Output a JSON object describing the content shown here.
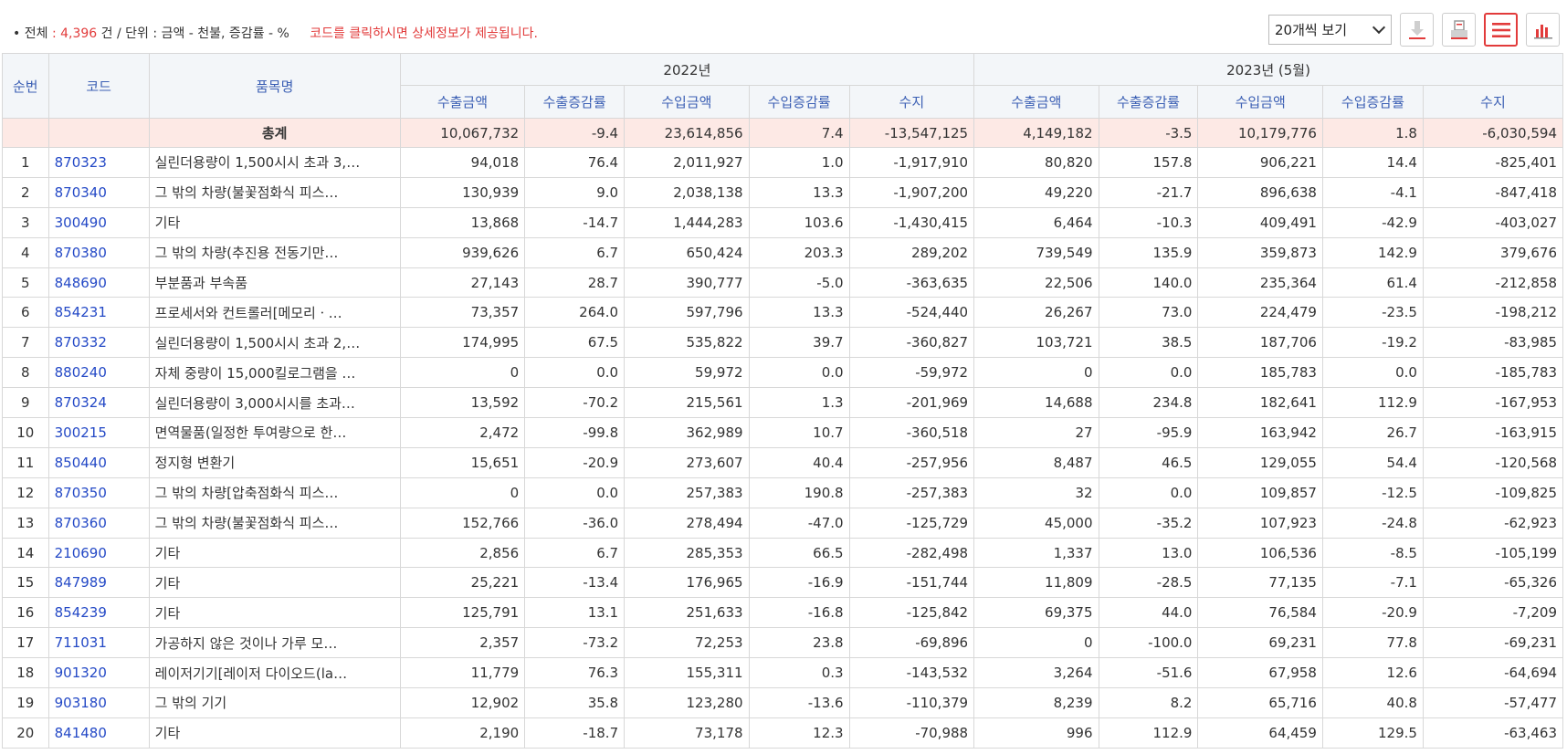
{
  "summary": {
    "bullet": "•",
    "total_label": "전체",
    "sep1": ":",
    "total_count": "4,396",
    "total_unit": "건",
    "slash": "/",
    "unit_label": "단위",
    "sep2": ":",
    "unit_text": "금액 - 천불, 증감률 - %",
    "note": "코드를 클릭하시면 상세정보가 제공됩니다."
  },
  "controls": {
    "page_size_selected": "20개씩 보기",
    "icons": [
      "download-icon",
      "print-icon",
      "list-view-icon",
      "chart-view-icon"
    ],
    "accent_color": "#e23b3b"
  },
  "table": {
    "headers": {
      "rank": "순번",
      "code": "코드",
      "name": "품목명",
      "period1": "2022년",
      "period2": "2023년 (5월)",
      "sub": [
        "수출금액",
        "수출증감률",
        "수입금액",
        "수입증감률",
        "수지"
      ]
    },
    "total": {
      "label": "총계",
      "values": [
        "10,067,732",
        "-9.4",
        "23,614,856",
        "7.4",
        "-13,547,125",
        "4,149,182",
        "-3.5",
        "10,179,776",
        "1.8",
        "-6,030,594"
      ]
    },
    "rows": [
      {
        "rank": "1",
        "code": "870323",
        "name": "실린더용량이 1,500시시 초과 3,…",
        "values": [
          "94,018",
          "76.4",
          "2,011,927",
          "1.0",
          "-1,917,910",
          "80,820",
          "157.8",
          "906,221",
          "14.4",
          "-825,401"
        ]
      },
      {
        "rank": "2",
        "code": "870340",
        "name": "그 밖의 차량(불꽃점화식 피스…",
        "values": [
          "130,939",
          "9.0",
          "2,038,138",
          "13.3",
          "-1,907,200",
          "49,220",
          "-21.7",
          "896,638",
          "-4.1",
          "-847,418"
        ]
      },
      {
        "rank": "3",
        "code": "300490",
        "name": "기타",
        "values": [
          "13,868",
          "-14.7",
          "1,444,283",
          "103.6",
          "-1,430,415",
          "6,464",
          "-10.3",
          "409,491",
          "-42.9",
          "-403,027"
        ]
      },
      {
        "rank": "4",
        "code": "870380",
        "name": "그 밖의 차량(추진용 전동기만…",
        "values": [
          "939,626",
          "6.7",
          "650,424",
          "203.3",
          "289,202",
          "739,549",
          "135.9",
          "359,873",
          "142.9",
          "379,676"
        ]
      },
      {
        "rank": "5",
        "code": "848690",
        "name": "부분품과 부속품",
        "values": [
          "27,143",
          "28.7",
          "390,777",
          "-5.0",
          "-363,635",
          "22,506",
          "140.0",
          "235,364",
          "61.4",
          "-212,858"
        ]
      },
      {
        "rank": "6",
        "code": "854231",
        "name": "프로세서와 컨트롤러[메모리ㆍ…",
        "values": [
          "73,357",
          "264.0",
          "597,796",
          "13.3",
          "-524,440",
          "26,267",
          "73.0",
          "224,479",
          "-23.5",
          "-198,212"
        ]
      },
      {
        "rank": "7",
        "code": "870332",
        "name": "실린더용량이 1,500시시 초과 2,…",
        "values": [
          "174,995",
          "67.5",
          "535,822",
          "39.7",
          "-360,827",
          "103,721",
          "38.5",
          "187,706",
          "-19.2",
          "-83,985"
        ]
      },
      {
        "rank": "8",
        "code": "880240",
        "name": "자체 중량이 15,000킬로그램을 …",
        "values": [
          "0",
          "0.0",
          "59,972",
          "0.0",
          "-59,972",
          "0",
          "0.0",
          "185,783",
          "0.0",
          "-185,783"
        ]
      },
      {
        "rank": "9",
        "code": "870324",
        "name": "실린더용량이 3,000시시를 초과…",
        "values": [
          "13,592",
          "-70.2",
          "215,561",
          "1.3",
          "-201,969",
          "14,688",
          "234.8",
          "182,641",
          "112.9",
          "-167,953"
        ]
      },
      {
        "rank": "10",
        "code": "300215",
        "name": "면역물품(일정한 투여량으로 한…",
        "values": [
          "2,472",
          "-99.8",
          "362,989",
          "10.7",
          "-360,518",
          "27",
          "-95.9",
          "163,942",
          "26.7",
          "-163,915"
        ]
      },
      {
        "rank": "11",
        "code": "850440",
        "name": "정지형 변환기",
        "values": [
          "15,651",
          "-20.9",
          "273,607",
          "40.4",
          "-257,956",
          "8,487",
          "46.5",
          "129,055",
          "54.4",
          "-120,568"
        ]
      },
      {
        "rank": "12",
        "code": "870350",
        "name": "그 밖의 차량[압축점화식 피스…",
        "values": [
          "0",
          "0.0",
          "257,383",
          "190.8",
          "-257,383",
          "32",
          "0.0",
          "109,857",
          "-12.5",
          "-109,825"
        ]
      },
      {
        "rank": "13",
        "code": "870360",
        "name": "그 밖의 차량(불꽃점화식 피스…",
        "values": [
          "152,766",
          "-36.0",
          "278,494",
          "-47.0",
          "-125,729",
          "45,000",
          "-35.2",
          "107,923",
          "-24.8",
          "-62,923"
        ]
      },
      {
        "rank": "14",
        "code": "210690",
        "name": "기타",
        "values": [
          "2,856",
          "6.7",
          "285,353",
          "66.5",
          "-282,498",
          "1,337",
          "13.0",
          "106,536",
          "-8.5",
          "-105,199"
        ]
      },
      {
        "rank": "15",
        "code": "847989",
        "name": "기타",
        "values": [
          "25,221",
          "-13.4",
          "176,965",
          "-16.9",
          "-151,744",
          "11,809",
          "-28.5",
          "77,135",
          "-7.1",
          "-65,326"
        ]
      },
      {
        "rank": "16",
        "code": "854239",
        "name": "기타",
        "values": [
          "125,791",
          "13.1",
          "251,633",
          "-16.8",
          "-125,842",
          "69,375",
          "44.0",
          "76,584",
          "-20.9",
          "-7,209"
        ]
      },
      {
        "rank": "17",
        "code": "711031",
        "name": "가공하지 않은 것이나 가루 모…",
        "values": [
          "2,357",
          "-73.2",
          "72,253",
          "23.8",
          "-69,896",
          "0",
          "-100.0",
          "69,231",
          "77.8",
          "-69,231"
        ]
      },
      {
        "rank": "18",
        "code": "901320",
        "name": "레이저기기[레이저 다이오드(la…",
        "values": [
          "11,779",
          "76.3",
          "155,311",
          "0.3",
          "-143,532",
          "3,264",
          "-51.6",
          "67,958",
          "12.6",
          "-64,694"
        ]
      },
      {
        "rank": "19",
        "code": "903180",
        "name": "그 밖의 기기",
        "values": [
          "12,902",
          "35.8",
          "123,280",
          "-13.6",
          "-110,379",
          "8,239",
          "8.2",
          "65,716",
          "40.8",
          "-57,477"
        ]
      },
      {
        "rank": "20",
        "code": "841480",
        "name": "기타",
        "values": [
          "2,190",
          "-18.7",
          "73,178",
          "12.3",
          "-70,988",
          "996",
          "112.9",
          "64,459",
          "129.5",
          "-63,463"
        ]
      }
    ]
  }
}
